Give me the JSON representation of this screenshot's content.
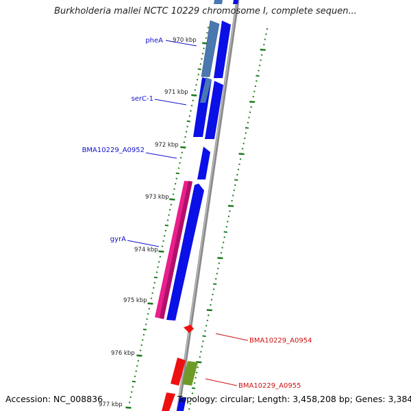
{
  "title": "Burkholderia mallei NCTC 10229 chromosome I, complete sequen...",
  "footer": {
    "accession": "Accession: NC_008836",
    "topology": "Topology: circular; Length: 3,458,208 bp; Genes: 3,384"
  },
  "colors": {
    "backbone": "#8a8a8a",
    "tick": "#1e7a1e",
    "blue_gene": "#0a10e6",
    "steel_gene": "#4a78b0",
    "pink_gene": "#ea1e8c",
    "red_gene": "#ee1010",
    "olive_gene": "#6e9a28",
    "label_blue": "#1010cc",
    "label_red": "#cc1010"
  },
  "ticks": [
    "970 kbp",
    "971 kbp",
    "972 kbp",
    "973 kbp",
    "974 kbp",
    "975 kbp",
    "976 kbp",
    "977 kbp"
  ],
  "gene_labels": [
    {
      "text": "pheA",
      "color": "label_blue"
    },
    {
      "text": "serC-1",
      "color": "label_blue"
    },
    {
      "text": "BMA10229_A0952",
      "color": "label_blue"
    },
    {
      "text": "gyrA",
      "color": "label_blue"
    },
    {
      "text": "BMA10229_A0954",
      "color": "label_red"
    },
    {
      "text": "BMA10229_A0955",
      "color": "label_red"
    }
  ]
}
